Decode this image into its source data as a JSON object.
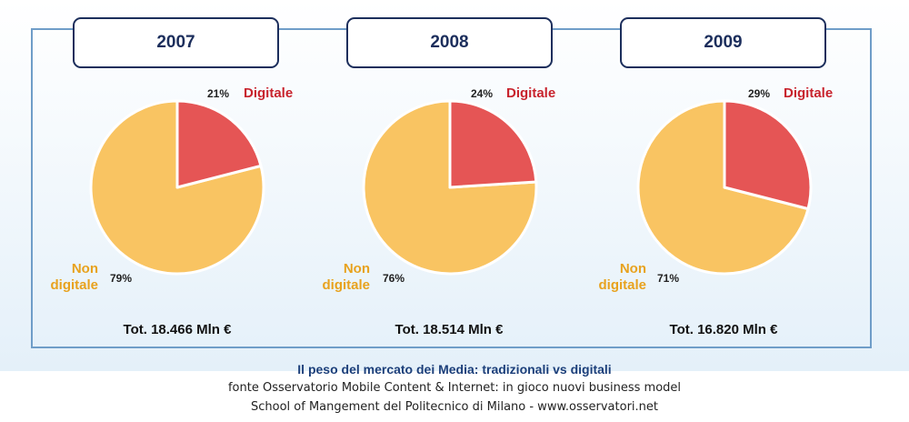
{
  "chart_data": {
    "type": "pie",
    "title": "Il peso del mercato dei Media: tradizionali vs digitali",
    "colors": {
      "digitale": "#e55555",
      "non_digitale": "#f9c462"
    },
    "categories": [
      "Digitale",
      "Non digitale"
    ],
    "panels": [
      {
        "year": "2007",
        "digitale_value": 21,
        "non_digitale_value": 79,
        "digitale_pct_label": "21%",
        "non_digitale_pct_label": "79%",
        "total_label": "Tot. 18.466 Mln €"
      },
      {
        "year": "2008",
        "digitale_value": 24,
        "non_digitale_value": 76,
        "digitale_pct_label": "24%",
        "non_digitale_pct_label": "76%",
        "total_label": "Tot. 18.514 Mln €"
      },
      {
        "year": "2009",
        "digitale_value": 29,
        "non_digitale_value": 71,
        "digitale_pct_label": "29%",
        "non_digitale_pct_label": "71%",
        "total_label": "Tot. 16.820 Mln €"
      }
    ]
  },
  "labels": {
    "digitale": "Digitale",
    "non": "Non",
    "digitale_lower": "digitale"
  },
  "caption": {
    "title": "Il peso del mercato dei Media: tradizionali vs digitali",
    "line1": "fonte Osservatorio Mobile Content & Internet: in gioco nuovi business model",
    "line2": "School of Mangement del Politecnico di Milano - www.osservatori.net"
  }
}
